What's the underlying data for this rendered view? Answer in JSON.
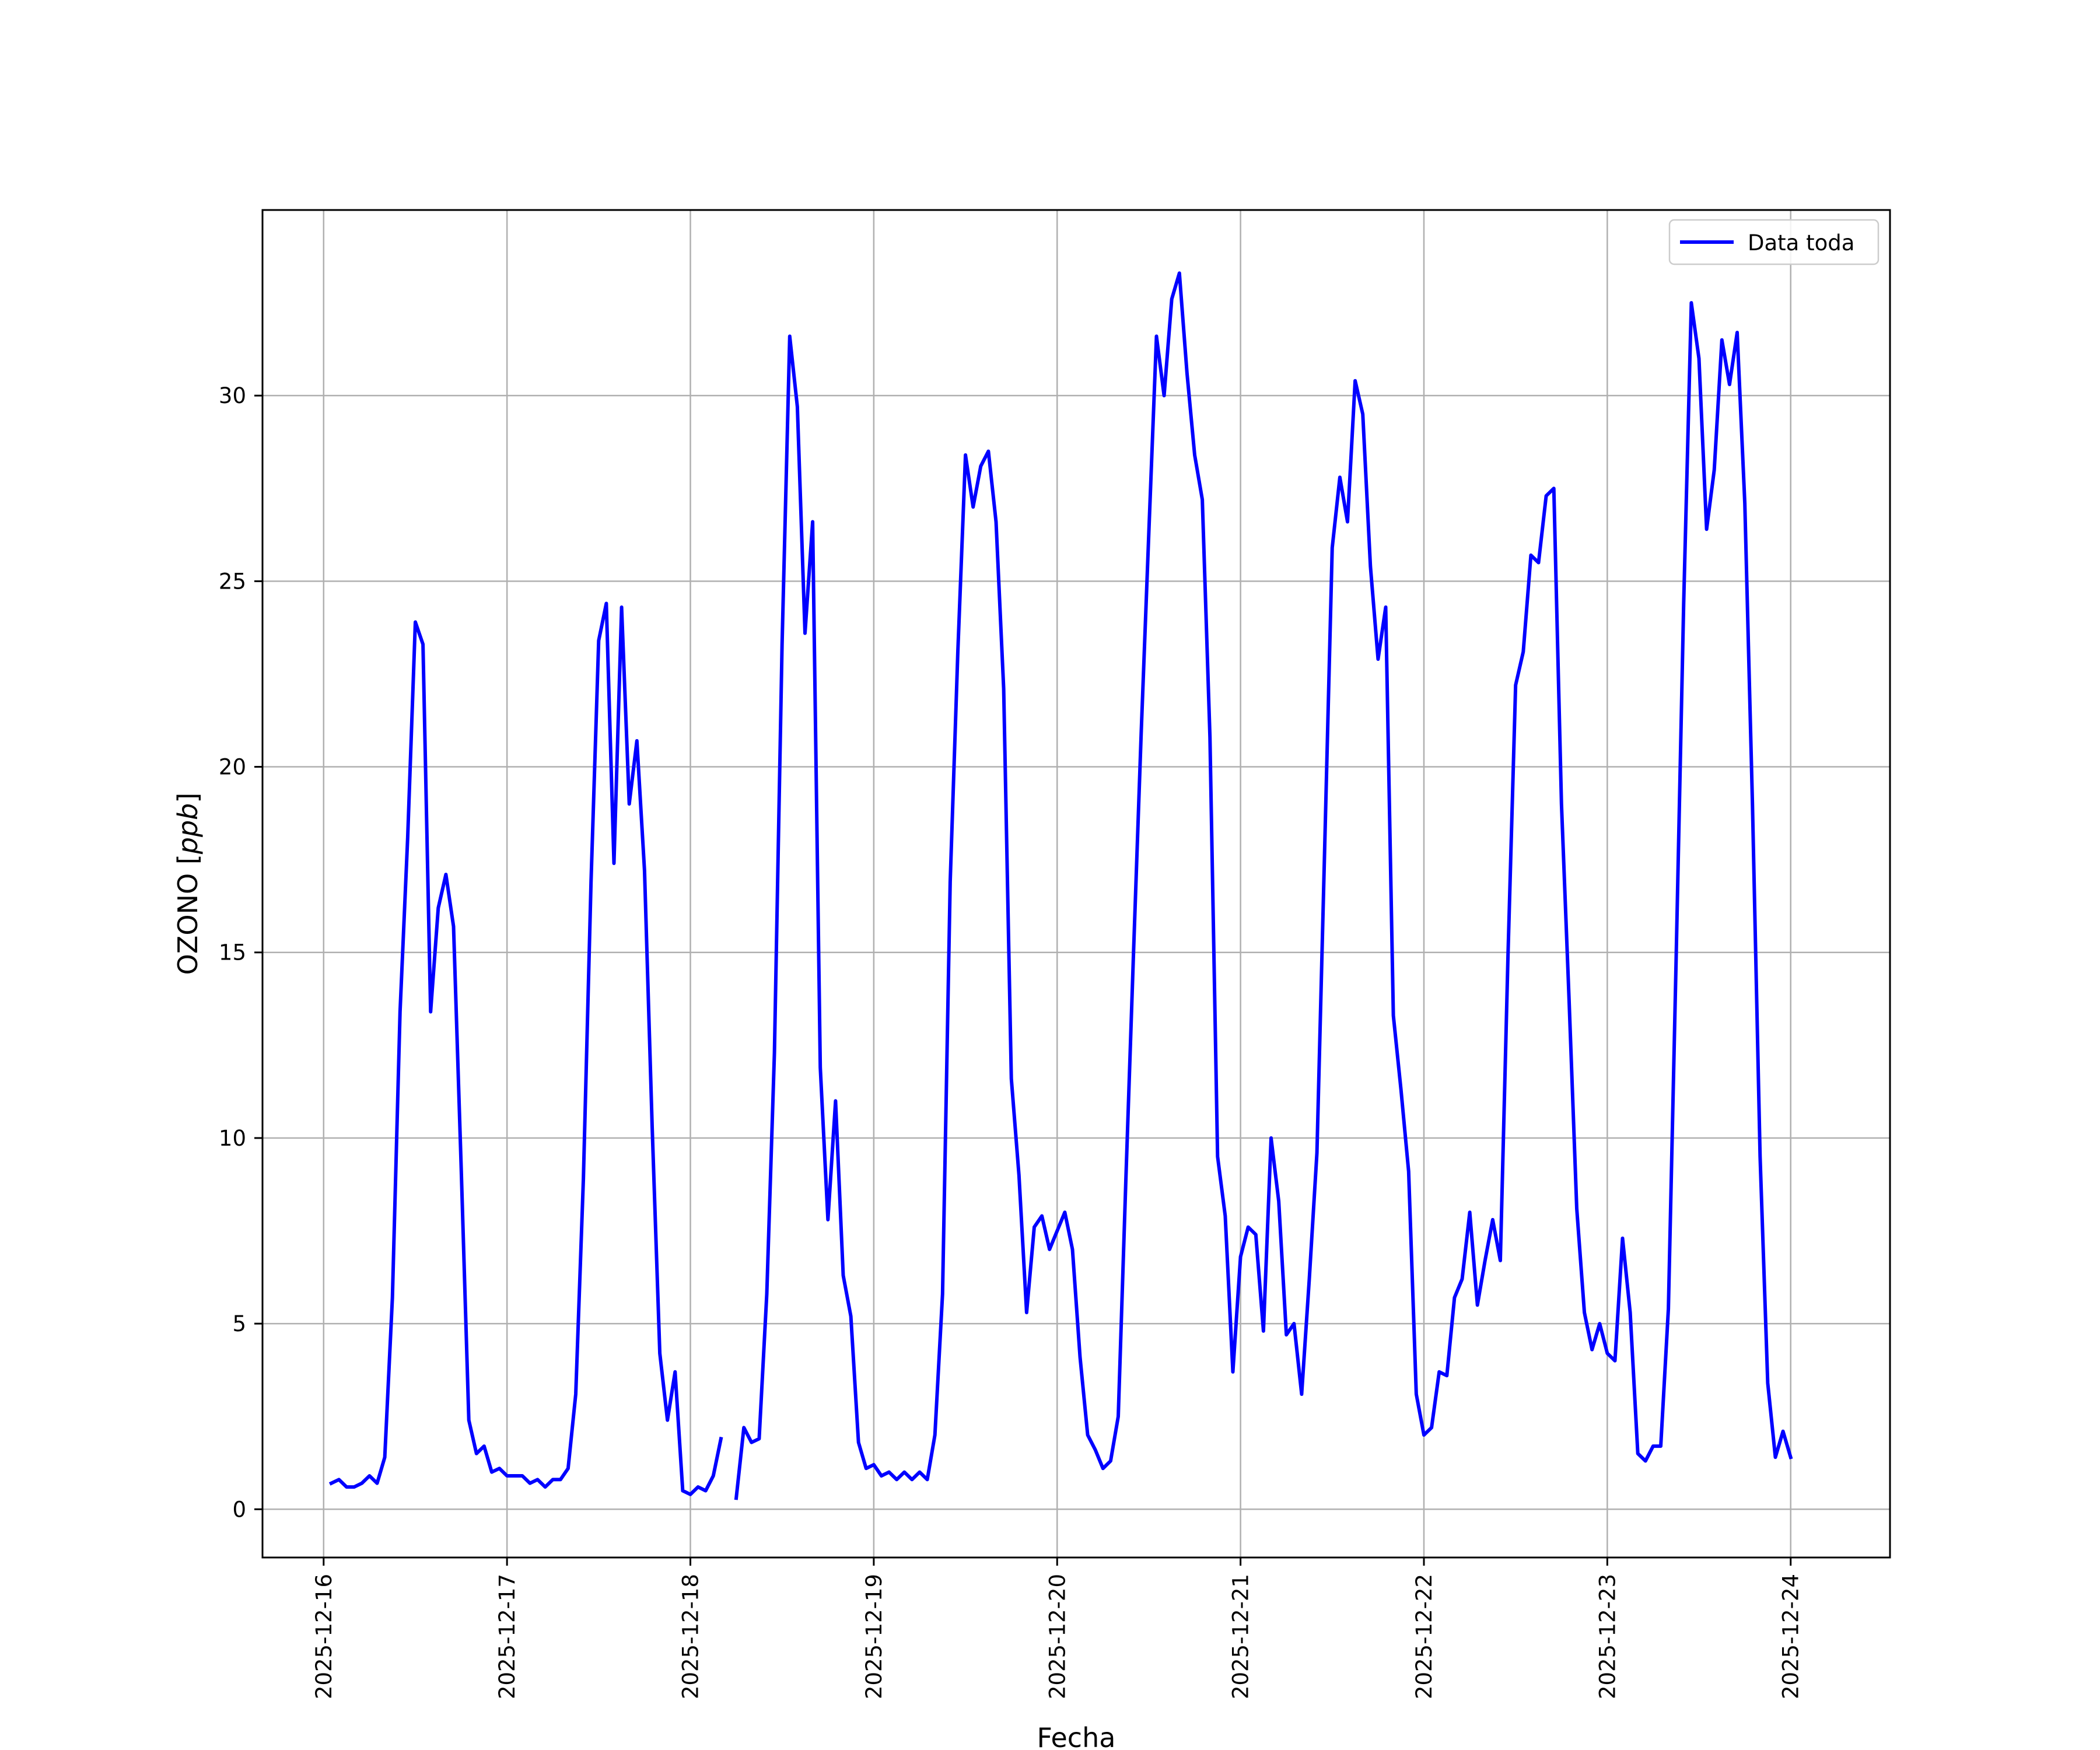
{
  "chart_data": {
    "type": "line",
    "title": "",
    "xlabel": "Fecha",
    "ylabel_text": "OZONO [",
    "ylabel_unit": "ppb",
    "ylabel_close": "]",
    "x_tick_labels": [
      "2025-12-16",
      "2025-12-17",
      "2025-12-18",
      "2025-12-19",
      "2025-12-20",
      "2025-12-21",
      "2025-12-22",
      "2025-12-23",
      "2025-12-24"
    ],
    "y_ticks": [
      0,
      5,
      10,
      15,
      20,
      25,
      30
    ],
    "xlim": [
      "2025-12-15T16:00",
      "2025-12-24T13:00"
    ],
    "ylim": [
      -1.3,
      35.0
    ],
    "grid": true,
    "legend_position": "top-right",
    "colors": {
      "series": "#0000ff",
      "grid": "#b0b0b0",
      "axes": "#000000"
    },
    "series": [
      {
        "name": "Data toda",
        "x_start": "2025-12-16T01:00",
        "x_step_hours": 1,
        "values": [
          0.7,
          0.8,
          0.6,
          0.6,
          0.7,
          0.9,
          0.7,
          1.4,
          5.7,
          13.4,
          18.1,
          23.9,
          23.3,
          13.4,
          16.2,
          17.1,
          15.7,
          9.2,
          2.4,
          1.5,
          1.7,
          1.0,
          1.1,
          0.9,
          0.9,
          0.9,
          0.7,
          0.8,
          0.6,
          0.8,
          0.8,
          1.1,
          3.1,
          8.9,
          16.9,
          23.4,
          24.4,
          17.4,
          24.3,
          19.0,
          20.7,
          17.2,
          10.3,
          4.2,
          2.4,
          3.7,
          0.5,
          0.4,
          0.6,
          0.5,
          0.9,
          1.9,
          null,
          0.3,
          2.2,
          1.8,
          1.9,
          5.8,
          12.3,
          23.3,
          31.6,
          29.7,
          23.6,
          26.6,
          11.9,
          7.8,
          11.0,
          6.3,
          5.2,
          1.8,
          1.1,
          1.2,
          0.9,
          1.0,
          0.8,
          1.0,
          0.8,
          1.0,
          0.8,
          2.0,
          5.8,
          16.9,
          23.1,
          28.4,
          27.0,
          28.1,
          28.5,
          26.6,
          22.1,
          11.6,
          9.0,
          5.3,
          7.6,
          7.9,
          7.0,
          7.5,
          8.0,
          7.0,
          4.1,
          2.0,
          1.6,
          1.1,
          1.3,
          2.5,
          8.9,
          15.0,
          20.9,
          26.3,
          31.6,
          30.0,
          32.6,
          33.3,
          30.6,
          28.4,
          27.2,
          20.8,
          9.5,
          7.9,
          3.7,
          6.8,
          7.6,
          7.4,
          4.8,
          10.0,
          8.3,
          4.7,
          5.0,
          3.1,
          6.2,
          9.6,
          17.7,
          25.9,
          27.8,
          26.6,
          30.4,
          29.5,
          25.4,
          22.9,
          24.3,
          13.3,
          11.3,
          9.1,
          3.1,
          2.0,
          2.2,
          3.7,
          3.6,
          5.7,
          6.2,
          8.0,
          5.5,
          6.7,
          7.8,
          6.7,
          14.9,
          22.2,
          23.1,
          25.7,
          25.5,
          27.3,
          27.5,
          19.0,
          13.7,
          8.1,
          5.3,
          4.3,
          5.0,
          4.2,
          4.0,
          7.3,
          5.3,
          1.5,
          1.3,
          1.7,
          1.7,
          5.4,
          14.7,
          24.4,
          32.5,
          31.0,
          26.4,
          28.0,
          31.5,
          30.3,
          31.7,
          27.1,
          19.0,
          9.5,
          3.4,
          1.4,
          2.1,
          1.4
        ]
      }
    ]
  }
}
